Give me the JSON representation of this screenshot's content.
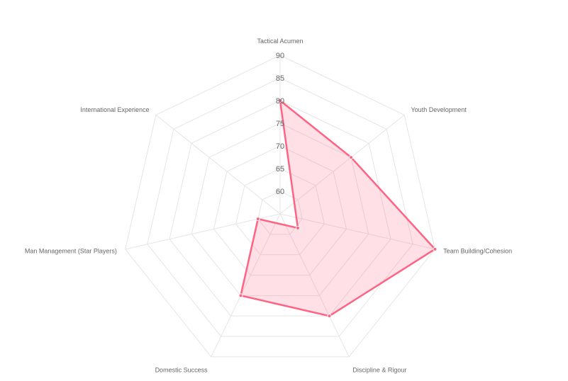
{
  "chart_data": {
    "type": "radar",
    "axes": [
      "Tactical Acumen",
      "Youth Development",
      "Team Building/Cohesion",
      "Discipline & Rigour",
      "Domestic Success",
      "Man Management (Star Players)",
      "International Experience"
    ],
    "series": [
      {
        "values": [
          80,
          75,
          90,
          80,
          75,
          60,
          50
        ],
        "color": "#ff6384",
        "fill": "rgba(255, 99, 132, 0.2)"
      }
    ],
    "rmin": 55,
    "rmax": 90,
    "ticks": [
      60,
      65,
      70,
      75,
      80,
      85,
      90
    ],
    "grid": true,
    "grid_color": "#e5e5e5",
    "legend": "none"
  }
}
